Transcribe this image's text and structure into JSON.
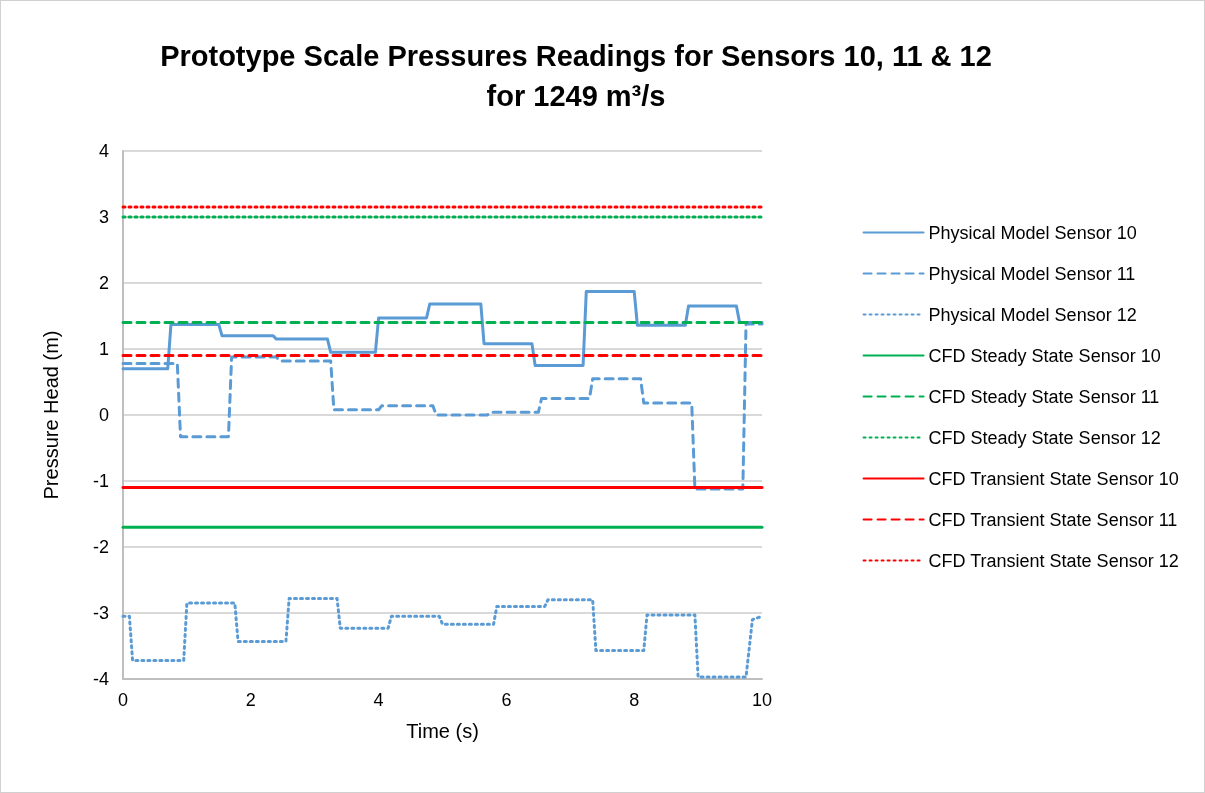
{
  "chart_data": {
    "type": "line",
    "title": "Prototype Scale Pressures Readings for Sensors 10, 11 & 12\nfor 1249 m³/s",
    "xlabel": "Time (s)",
    "ylabel": "Pressure Head (m)",
    "xlim": [
      0,
      10
    ],
    "xticks": [
      0,
      2,
      4,
      6,
      8,
      10
    ],
    "ylim": [
      -4,
      4
    ],
    "yticks": [
      -4,
      -3,
      -2,
      -1,
      0,
      1,
      2,
      3,
      4
    ],
    "grid": "y",
    "legend": "right",
    "marker": "none",
    "series": [
      {
        "name": "Physical Model Sensor 10",
        "color": "#5b9bd5",
        "line_style": "solid",
        "x": [
          0,
          0.7,
          0.75,
          1.5,
          1.55,
          2.35,
          2.4,
          3.2,
          3.25,
          3.95,
          4.0,
          4.75,
          4.8,
          5.6,
          5.65,
          6.4,
          6.45,
          7.2,
          7.25,
          8.0,
          8.05,
          8.8,
          8.85,
          9.6,
          9.65,
          10
        ],
        "values": [
          0.7,
          0.7,
          1.37,
          1.37,
          1.2,
          1.2,
          1.15,
          1.15,
          0.95,
          0.95,
          1.47,
          1.47,
          1.68,
          1.68,
          1.08,
          1.08,
          0.75,
          0.75,
          1.87,
          1.87,
          1.36,
          1.36,
          1.65,
          1.65,
          1.4,
          1.4
        ]
      },
      {
        "name": "Physical Model Sensor 11",
        "color": "#5b9bd5",
        "line_style": "dashed",
        "x": [
          0,
          0.85,
          0.9,
          1.65,
          1.7,
          2.4,
          2.45,
          3.25,
          3.3,
          4.0,
          4.05,
          4.85,
          4.9,
          5.7,
          5.75,
          6.5,
          6.55,
          7.3,
          7.35,
          8.1,
          8.15,
          8.9,
          8.95,
          9.7,
          9.75,
          10
        ],
        "values": [
          0.78,
          0.78,
          -0.33,
          -0.33,
          0.88,
          0.88,
          0.82,
          0.82,
          0.08,
          0.08,
          0.14,
          0.14,
          0.0,
          0.0,
          0.04,
          0.04,
          0.25,
          0.25,
          0.55,
          0.55,
          0.18,
          0.18,
          -1.12,
          -1.12,
          1.38,
          1.38
        ]
      },
      {
        "name": "Physical Model Sensor 12",
        "color": "#5b9bd5",
        "line_style": "dotted",
        "x": [
          0,
          0.1,
          0.15,
          0.95,
          1.0,
          1.75,
          1.8,
          2.55,
          2.6,
          3.35,
          3.4,
          4.15,
          4.2,
          4.95,
          5.0,
          5.8,
          5.85,
          6.6,
          6.65,
          7.35,
          7.4,
          8.15,
          8.2,
          8.95,
          9.0,
          9.75,
          9.85,
          10
        ],
        "values": [
          -3.05,
          -3.05,
          -3.72,
          -3.72,
          -2.85,
          -2.85,
          -3.43,
          -3.43,
          -2.78,
          -2.78,
          -3.23,
          -3.23,
          -3.05,
          -3.05,
          -3.17,
          -3.17,
          -2.9,
          -2.9,
          -2.8,
          -2.8,
          -3.57,
          -3.57,
          -3.03,
          -3.03,
          -3.97,
          -3.97,
          -3.1,
          -3.05
        ]
      },
      {
        "name": "CFD Steady State Sensor 10",
        "color": "#00b050",
        "line_style": "solid",
        "x": [
          0,
          10
        ],
        "values": [
          -1.7,
          -1.7
        ]
      },
      {
        "name": "CFD Steady State Sensor 11",
        "color": "#00b050",
        "line_style": "dashed",
        "x": [
          0,
          10
        ],
        "values": [
          1.4,
          1.4
        ]
      },
      {
        "name": "CFD Steady State Sensor 12",
        "color": "#00b050",
        "line_style": "dotted",
        "x": [
          0,
          10
        ],
        "values": [
          3.0,
          3.0
        ]
      },
      {
        "name": "CFD Transient State Sensor 10",
        "color": "#ff0000",
        "line_style": "solid",
        "x": [
          0,
          10
        ],
        "values": [
          -1.1,
          -1.1
        ]
      },
      {
        "name": "CFD Transient State Sensor 11",
        "color": "#ff0000",
        "line_style": "dashed",
        "x": [
          0,
          10
        ],
        "values": [
          0.9,
          0.9
        ]
      },
      {
        "name": "CFD Transient State Sensor 12",
        "color": "#ff0000",
        "line_style": "dotted",
        "x": [
          0,
          10
        ],
        "values": [
          3.15,
          3.15
        ]
      }
    ]
  }
}
